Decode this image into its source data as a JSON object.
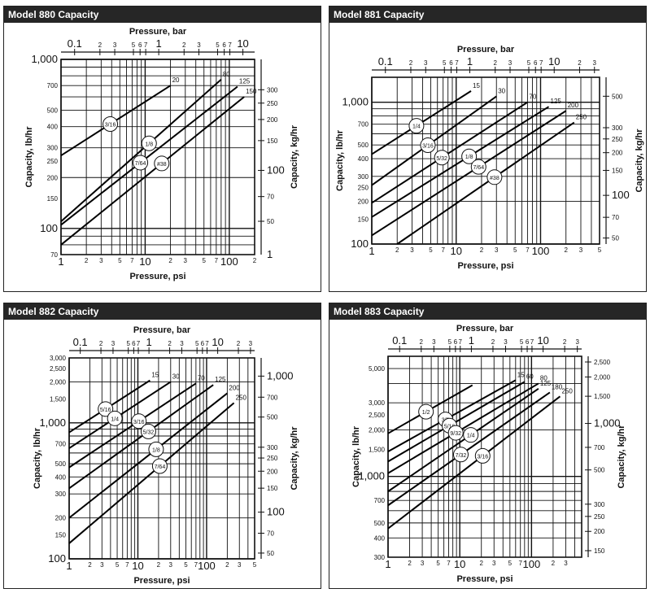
{
  "chart_data": [
    {
      "type": "line",
      "title": "Model 880 Capacity",
      "xlabel_top": "Pressure, bar",
      "xlabel": "Pressure, psi",
      "ylabel": "Capacity, lb/hr",
      "ylabel_right": "Capacity, kg/hr",
      "xscale": "log",
      "yscale": "log",
      "xlim": [
        1,
        200
      ],
      "ylim": [
        70,
        1000
      ],
      "bar_ticks": [
        {
          "v": 0.1,
          "l": "0.1",
          "big": true
        },
        {
          "v": 0.2,
          "l": "2"
        },
        {
          "v": 0.3,
          "l": "3"
        },
        {
          "v": 0.5,
          "l": "5"
        },
        {
          "v": 0.6,
          "l": "6"
        },
        {
          "v": 0.7,
          "l": "7"
        },
        {
          "v": 1,
          "l": "1",
          "big": true
        },
        {
          "v": 2,
          "l": "2"
        },
        {
          "v": 3,
          "l": "3"
        },
        {
          "v": 5,
          "l": "5"
        },
        {
          "v": 6,
          "l": "6"
        },
        {
          "v": 7,
          "l": "7"
        },
        {
          "v": 10,
          "l": "10",
          "big": true
        }
      ],
      "psi_ticks": [
        {
          "v": 1,
          "l": "1",
          "big": true
        },
        {
          "v": 2,
          "l": "2"
        },
        {
          "v": 3,
          "l": "3"
        },
        {
          "v": 5,
          "l": "5"
        },
        {
          "v": 7,
          "l": "7"
        },
        {
          "v": 10,
          "l": "10",
          "big": true
        },
        {
          "v": 20,
          "l": "2"
        },
        {
          "v": 30,
          "l": "3"
        },
        {
          "v": 50,
          "l": "5"
        },
        {
          "v": 70,
          "l": "7"
        },
        {
          "v": 100,
          "l": "100",
          "big": true
        },
        {
          "v": 200,
          "l": "2"
        }
      ],
      "lb_ticks": [
        {
          "v": 70,
          "l": "70"
        },
        {
          "v": 100,
          "l": "100",
          "big": true
        },
        {
          "v": 150,
          "l": "150"
        },
        {
          "v": 200,
          "l": "200"
        },
        {
          "v": 250,
          "l": "250"
        },
        {
          "v": 300,
          "l": "300"
        },
        {
          "v": 400,
          "l": "400"
        },
        {
          "v": 500,
          "l": "500"
        },
        {
          "v": 700,
          "l": "700"
        },
        {
          "v": 1000,
          "l": "1,000",
          "big": true
        }
      ],
      "kg_ticks": [
        {
          "v": 50,
          "l": "50"
        },
        {
          "v": 70,
          "l": "70"
        },
        {
          "v": 100,
          "l": "100",
          "big": true
        },
        {
          "v": 150,
          "l": "150"
        },
        {
          "v": 200,
          "l": "200"
        },
        {
          "v": 250,
          "l": "250"
        },
        {
          "v": 300,
          "l": "300"
        }
      ],
      "kg_extra_labels": [
        {
          "l": "1",
          "big": true
        }
      ],
      "series": [
        {
          "name": "3/16",
          "label_pos": "left",
          "x": [
            1,
            20
          ],
          "y": [
            270,
            700
          ]
        },
        {
          "name": "1/8",
          "label_pos": "right",
          "x": [
            1,
            80
          ],
          "y": [
            110,
            760
          ]
        },
        {
          "name": "7/64",
          "label_pos": "left",
          "x": [
            1,
            125
          ],
          "y": [
            105,
            690
          ]
        },
        {
          "name": "#38",
          "label_pos": "right",
          "x": [
            1,
            150
          ],
          "y": [
            80,
            600
          ]
        }
      ],
      "end_labels": [
        "20",
        "80",
        "125",
        "150"
      ]
    },
    {
      "type": "line",
      "title": "Model 881 Capacity",
      "xlabel_top": "Pressure, bar",
      "xlabel": "Pressure, psi",
      "ylabel": "Capacity, lb/hr",
      "ylabel_right": "Capacity, kg/hr",
      "xscale": "log",
      "yscale": "log",
      "xlim": [
        1,
        500
      ],
      "ylim": [
        100,
        1500
      ],
      "bar_ticks": [
        {
          "v": 0.1,
          "l": "0.1",
          "big": true
        },
        {
          "v": 0.2,
          "l": "2"
        },
        {
          "v": 0.3,
          "l": "3"
        },
        {
          "v": 0.5,
          "l": "5"
        },
        {
          "v": 0.6,
          "l": "6"
        },
        {
          "v": 0.7,
          "l": "7"
        },
        {
          "v": 1,
          "l": "1",
          "big": true
        },
        {
          "v": 2,
          "l": "2"
        },
        {
          "v": 3,
          "l": "3"
        },
        {
          "v": 5,
          "l": "5"
        },
        {
          "v": 6,
          "l": "6"
        },
        {
          "v": 7,
          "l": "7"
        },
        {
          "v": 10,
          "l": "10",
          "big": true
        },
        {
          "v": 20,
          "l": "2"
        },
        {
          "v": 30,
          "l": "3"
        }
      ],
      "psi_ticks": [
        {
          "v": 1,
          "l": "1",
          "big": true
        },
        {
          "v": 2,
          "l": "2"
        },
        {
          "v": 3,
          "l": "3"
        },
        {
          "v": 5,
          "l": "5"
        },
        {
          "v": 7,
          "l": "7"
        },
        {
          "v": 10,
          "l": "10",
          "big": true
        },
        {
          "v": 20,
          "l": "2"
        },
        {
          "v": 30,
          "l": "3"
        },
        {
          "v": 50,
          "l": "5"
        },
        {
          "v": 70,
          "l": "7"
        },
        {
          "v": 100,
          "l": "100",
          "big": true
        },
        {
          "v": 200,
          "l": "2"
        },
        {
          "v": 300,
          "l": "3"
        },
        {
          "v": 500,
          "l": "5"
        }
      ],
      "lb_ticks": [
        {
          "v": 100,
          "l": "100",
          "big": true
        },
        {
          "v": 150,
          "l": "150"
        },
        {
          "v": 200,
          "l": "200"
        },
        {
          "v": 250,
          "l": "250"
        },
        {
          "v": 300,
          "l": "300"
        },
        {
          "v": 400,
          "l": "400"
        },
        {
          "v": 500,
          "l": "500"
        },
        {
          "v": 700,
          "l": "700"
        },
        {
          "v": 1000,
          "l": "1,000",
          "big": true
        }
      ],
      "kg_ticks": [
        {
          "v": 50,
          "l": "50"
        },
        {
          "v": 70,
          "l": "70"
        },
        {
          "v": 100,
          "l": "100",
          "big": true
        },
        {
          "v": 150,
          "l": "150"
        },
        {
          "v": 200,
          "l": "200"
        },
        {
          "v": 250,
          "l": "250"
        },
        {
          "v": 300,
          "l": "300"
        },
        {
          "v": 500,
          "l": "500"
        }
      ],
      "series": [
        {
          "name": "1/4",
          "label_pos": "left",
          "x": [
            1,
            15
          ],
          "y": [
            430,
            1200
          ]
        },
        {
          "name": "3/16",
          "label_pos": "left",
          "x": [
            1,
            30
          ],
          "y": [
            260,
            1100
          ]
        },
        {
          "name": "5/32",
          "label_pos": "left",
          "x": [
            1,
            70
          ],
          "y": [
            195,
            1000
          ]
        },
        {
          "name": "1/8",
          "label_pos": "right",
          "x": [
            1,
            125
          ],
          "y": [
            155,
            930
          ]
        },
        {
          "name": "7/64",
          "label_pos": "right",
          "x": [
            1,
            200
          ],
          "y": [
            115,
            870
          ]
        },
        {
          "name": "#38",
          "label_pos": "right",
          "x": [
            2,
            250
          ],
          "y": [
            100,
            720
          ]
        }
      ],
      "end_labels": [
        "15",
        "30",
        "70",
        "125",
        "200",
        "250"
      ]
    },
    {
      "type": "line",
      "title": "Model 882 Capacity",
      "xlabel_top": "Pressure, bar",
      "xlabel": "Pressure, psi",
      "ylabel": "Capacity, lb/hr",
      "ylabel_right": "Capacity, kg/hr",
      "xscale": "log",
      "yscale": "log",
      "xlim": [
        1,
        500
      ],
      "ylim": [
        100,
        3000
      ],
      "bar_ticks": [
        {
          "v": 0.1,
          "l": "0.1",
          "big": true
        },
        {
          "v": 0.2,
          "l": "2"
        },
        {
          "v": 0.3,
          "l": "3"
        },
        {
          "v": 0.5,
          "l": "5"
        },
        {
          "v": 0.6,
          "l": "6"
        },
        {
          "v": 0.7,
          "l": "7"
        },
        {
          "v": 1,
          "l": "1",
          "big": true
        },
        {
          "v": 2,
          "l": "2"
        },
        {
          "v": 3,
          "l": "3"
        },
        {
          "v": 5,
          "l": "5"
        },
        {
          "v": 6,
          "l": "6"
        },
        {
          "v": 7,
          "l": "7"
        },
        {
          "v": 10,
          "l": "10",
          "big": true
        },
        {
          "v": 20,
          "l": "2"
        },
        {
          "v": 30,
          "l": "3"
        }
      ],
      "psi_ticks": [
        {
          "v": 1,
          "l": "1",
          "big": true
        },
        {
          "v": 2,
          "l": "2"
        },
        {
          "v": 3,
          "l": "3"
        },
        {
          "v": 5,
          "l": "5"
        },
        {
          "v": 7,
          "l": "7"
        },
        {
          "v": 10,
          "l": "10",
          "big": true
        },
        {
          "v": 20,
          "l": "2"
        },
        {
          "v": 30,
          "l": "3"
        },
        {
          "v": 50,
          "l": "5"
        },
        {
          "v": 70,
          "l": "7"
        },
        {
          "v": 100,
          "l": "100",
          "big": true
        },
        {
          "v": 200,
          "l": "2"
        },
        {
          "v": 300,
          "l": "3"
        },
        {
          "v": 500,
          "l": "5"
        }
      ],
      "lb_ticks": [
        {
          "v": 100,
          "l": "100",
          "big": true
        },
        {
          "v": 150,
          "l": "150"
        },
        {
          "v": 200,
          "l": "200"
        },
        {
          "v": 300,
          "l": "300"
        },
        {
          "v": 400,
          "l": "400"
        },
        {
          "v": 500,
          "l": "500"
        },
        {
          "v": 700,
          "l": "700"
        },
        {
          "v": 1000,
          "l": "1,000",
          "big": true
        },
        {
          "v": 1500,
          "l": "1,500"
        },
        {
          "v": 2000,
          "l": "2,000"
        },
        {
          "v": 2500,
          "l": "2,500"
        },
        {
          "v": 3000,
          "l": "3,000"
        }
      ],
      "kg_ticks": [
        {
          "v": 50,
          "l": "50"
        },
        {
          "v": 70,
          "l": "70"
        },
        {
          "v": 100,
          "l": "100",
          "big": true
        },
        {
          "v": 150,
          "l": "150"
        },
        {
          "v": 200,
          "l": "200"
        },
        {
          "v": 250,
          "l": "250"
        },
        {
          "v": 300,
          "l": "300"
        },
        {
          "v": 500,
          "l": "500"
        },
        {
          "v": 700,
          "l": "700"
        },
        {
          "v": 1000,
          "l": "1,000",
          "big": true
        }
      ],
      "series": [
        {
          "name": "5/16",
          "label_pos": "left",
          "x": [
            1,
            15
          ],
          "y": [
            850,
            2050
          ]
        },
        {
          "name": "1/4",
          "label_pos": "left",
          "x": [
            1,
            30
          ],
          "y": [
            650,
            2000
          ]
        },
        {
          "name": "3/16",
          "label_pos": "right",
          "x": [
            1,
            70
          ],
          "y": [
            470,
            1950
          ]
        },
        {
          "name": "5/32",
          "label_pos": "right",
          "x": [
            1,
            125
          ],
          "y": [
            330,
            1900
          ]
        },
        {
          "name": "1/8",
          "label_pos": "right",
          "x": [
            1,
            200
          ],
          "y": [
            200,
            1650
          ]
        },
        {
          "name": "7/64",
          "label_pos": "right",
          "x": [
            1,
            250
          ],
          "y": [
            130,
            1400
          ]
        }
      ],
      "end_labels": [
        "15",
        "30",
        "70",
        "125",
        "200",
        "250"
      ]
    },
    {
      "type": "line",
      "title": "Model 883 Capacity",
      "xlabel_top": "Pressure, bar",
      "xlabel": "Pressure, psi",
      "ylabel": "Capacity, lb/hr",
      "ylabel_right": "Capacity, kg/hr",
      "xscale": "log",
      "yscale": "log",
      "xlim": [
        1,
        500
      ],
      "ylim": [
        300,
        6000
      ],
      "bar_ticks": [
        {
          "v": 0.1,
          "l": "0.1",
          "big": true
        },
        {
          "v": 0.2,
          "l": "2"
        },
        {
          "v": 0.3,
          "l": "3"
        },
        {
          "v": 0.5,
          "l": "5"
        },
        {
          "v": 0.6,
          "l": "6"
        },
        {
          "v": 0.7,
          "l": "7"
        },
        {
          "v": 1,
          "l": "1",
          "big": true
        },
        {
          "v": 2,
          "l": "2"
        },
        {
          "v": 3,
          "l": "3"
        },
        {
          "v": 5,
          "l": "5"
        },
        {
          "v": 6,
          "l": "6"
        },
        {
          "v": 7,
          "l": "7"
        },
        {
          "v": 10,
          "l": "10",
          "big": true
        },
        {
          "v": 20,
          "l": "2"
        },
        {
          "v": 30,
          "l": "3"
        }
      ],
      "psi_ticks": [
        {
          "v": 1,
          "l": "1",
          "big": true
        },
        {
          "v": 2,
          "l": "2"
        },
        {
          "v": 3,
          "l": "3"
        },
        {
          "v": 5,
          "l": "5"
        },
        {
          "v": 7,
          "l": "7"
        },
        {
          "v": 10,
          "l": "10",
          "big": true
        },
        {
          "v": 20,
          "l": "2"
        },
        {
          "v": 30,
          "l": "3"
        },
        {
          "v": 50,
          "l": "5"
        },
        {
          "v": 70,
          "l": "7"
        },
        {
          "v": 100,
          "l": "100",
          "big": true
        },
        {
          "v": 200,
          "l": "2"
        },
        {
          "v": 300,
          "l": "3"
        }
      ],
      "lb_ticks": [
        {
          "v": 300,
          "l": "300"
        },
        {
          "v": 400,
          "l": "400"
        },
        {
          "v": 500,
          "l": "500"
        },
        {
          "v": 700,
          "l": "700"
        },
        {
          "v": 1000,
          "l": "1,000",
          "big": true
        },
        {
          "v": 1500,
          "l": "1,500"
        },
        {
          "v": 2000,
          "l": "2,000"
        },
        {
          "v": 2500,
          "l": "2,500"
        },
        {
          "v": 3000,
          "l": "3,000"
        },
        {
          "v": 5000,
          "l": "5,000"
        }
      ],
      "kg_ticks": [
        {
          "v": 150,
          "l": "150"
        },
        {
          "v": 200,
          "l": "200"
        },
        {
          "v": 250,
          "l": "250"
        },
        {
          "v": 300,
          "l": "300"
        },
        {
          "v": 500,
          "l": "500"
        },
        {
          "v": 700,
          "l": "700"
        },
        {
          "v": 1000,
          "l": "1,000",
          "big": true
        },
        {
          "v": 1500,
          "l": "1,500"
        },
        {
          "v": 2000,
          "l": "2,000"
        },
        {
          "v": 2500,
          "l": "2,500"
        }
      ],
      "series": [
        {
          "name": "1/2",
          "label_pos": "left",
          "x": [
            1,
            15
          ],
          "y": [
            1900,
            3900
          ]
        },
        {
          "name": "3/8",
          "label_pos": "left",
          "x": [
            1,
            60
          ],
          "y": [
            1450,
            4200
          ]
        },
        {
          "name": "5/16",
          "label_pos": "left",
          "x": [
            1,
            80
          ],
          "y": [
            1250,
            4100
          ]
        },
        {
          "name": "9/32",
          "label_pos": "left",
          "x": [
            1,
            125
          ],
          "y": [
            1050,
            4000
          ]
        },
        {
          "name": "1/4",
          "label_pos": "right",
          "x": [
            1,
            125
          ],
          "y": [
            800,
            3700
          ]
        },
        {
          "name": "7/32",
          "label_pos": "left",
          "x": [
            1,
            180
          ],
          "y": [
            650,
            3500
          ]
        },
        {
          "name": "3/16",
          "label_pos": "right",
          "x": [
            1,
            250
          ],
          "y": [
            460,
            3300
          ]
        }
      ],
      "end_labels": [
        "15",
        "60",
        "80",
        "125",
        "180",
        "250"
      ]
    }
  ]
}
